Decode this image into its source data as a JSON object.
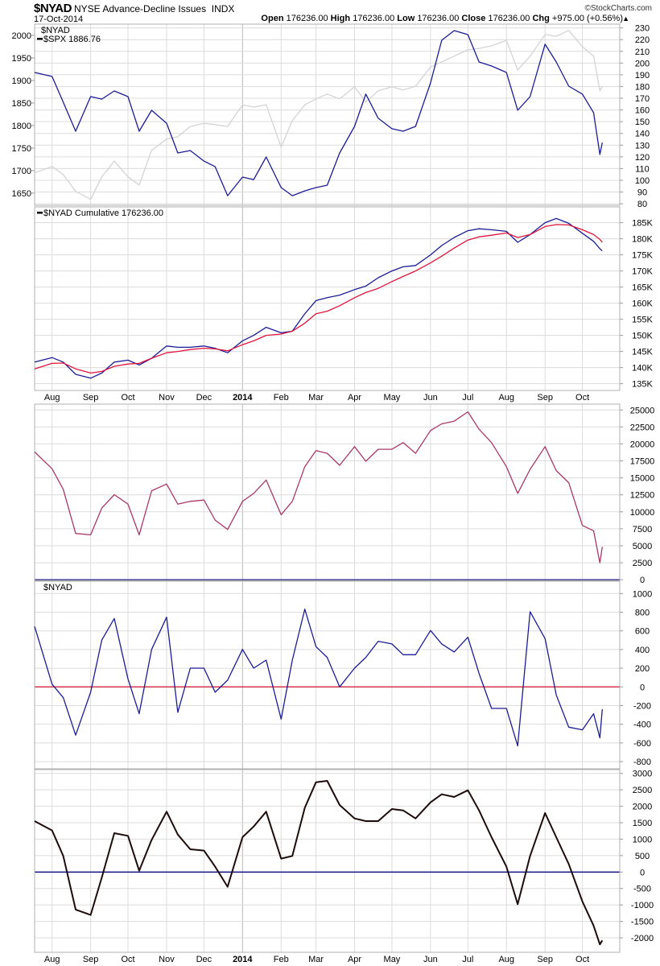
{
  "header": {
    "symbol": "$NYAD",
    "name": "NYSE Advance-Decline Issues",
    "exchange": "INDX",
    "date": "17-Oct-2014",
    "copyright": "©StockCharts.com",
    "open_label": "Open",
    "open": "176236.00",
    "high_label": "High",
    "high": "176236.00",
    "low_label": "Low",
    "low": "176236.00",
    "close_label": "Close",
    "close": "176236.00",
    "chg_label": "Chg",
    "chg": "+975.00 (+0.56%)",
    "chg_arrow": "▲"
  },
  "colors": {
    "nyad": "#1c1c96",
    "spx": "#d4d4d4",
    "ma": "#e0153c",
    "osc3": "#a83868",
    "osc5": "#1e0c0c",
    "zero4": "#d0102c",
    "zero_navy": "#0a0a80",
    "grid": "#dcdcdc"
  },
  "chart_data": {
    "type": "line",
    "x_range": [
      "2013-07-18",
      "2014-10-31"
    ],
    "x_ticks": [
      {
        "date": "2013-08-01",
        "label": "Aug"
      },
      {
        "date": "2013-09-01",
        "label": "Sep"
      },
      {
        "date": "2013-10-01",
        "label": "Oct"
      },
      {
        "date": "2013-11-01",
        "label": "Nov"
      },
      {
        "date": "2013-12-01",
        "label": "Dec"
      },
      {
        "date": "2014-01-01",
        "label": "2014",
        "bold": true
      },
      {
        "date": "2014-02-01",
        "label": "Feb"
      },
      {
        "date": "2014-03-01",
        "label": "Mar"
      },
      {
        "date": "2014-04-01",
        "label": "Apr"
      },
      {
        "date": "2014-05-01",
        "label": "May"
      },
      {
        "date": "2014-06-01",
        "label": "Jun"
      },
      {
        "date": "2014-07-01",
        "label": "Jul"
      },
      {
        "date": "2014-08-01",
        "label": "Aug"
      },
      {
        "date": "2014-09-01",
        "label": "Sep"
      },
      {
        "date": "2014-10-01",
        "label": "Oct"
      }
    ],
    "x": [
      "2013-07-18",
      "2013-08-01",
      "2013-08-10",
      "2013-08-20",
      "2013-09-01",
      "2013-09-10",
      "2013-09-20",
      "2013-10-01",
      "2013-10-10",
      "2013-10-20",
      "2013-11-01",
      "2013-11-10",
      "2013-11-20",
      "2013-12-01",
      "2013-12-10",
      "2013-12-20",
      "2014-01-01",
      "2014-01-10",
      "2014-01-20",
      "2014-02-01",
      "2014-02-10",
      "2014-02-20",
      "2014-03-01",
      "2014-03-10",
      "2014-03-20",
      "2014-04-01",
      "2014-04-10",
      "2014-04-20",
      "2014-05-01",
      "2014-05-10",
      "2014-05-20",
      "2014-06-01",
      "2014-06-10",
      "2014-06-20",
      "2014-07-01",
      "2014-07-10",
      "2014-07-20",
      "2014-08-01",
      "2014-08-10",
      "2014-08-20",
      "2014-09-01",
      "2014-09-10",
      "2014-09-20",
      "2014-10-01",
      "2014-10-10",
      "2014-10-15",
      "2014-10-17"
    ],
    "panels": [
      {
        "legend": [
          "$NYAD",
          "$SPX 1886.76"
        ],
        "left_ylim": [
          1623,
          2025
        ],
        "left_ticks": [
          1650,
          1700,
          1750,
          1800,
          1850,
          1900,
          1950,
          2000
        ],
        "right_ylim": [
          78.7,
          233.2
        ],
        "right_ticks": [
          80,
          90,
          100,
          110,
          120,
          130,
          140,
          150,
          160,
          170,
          180,
          190,
          200,
          210,
          220,
          230
        ],
        "series": [
          {
            "name": "$SPX",
            "axis": "left",
            "color_key": "spx",
            "values": [
              1695,
              1709,
              1691,
              1654,
              1636,
              1686,
              1721,
              1686,
              1668,
              1745,
              1770,
              1775,
              1798,
              1805,
              1802,
              1798,
              1846,
              1841,
              1846,
              1752,
              1811,
              1846,
              1859,
              1870,
              1859,
              1886,
              1852,
              1877,
              1886,
              1879,
              1887,
              1930,
              1941,
              1954,
              1968,
              1971,
              1977,
              1989,
              1923,
              1954,
              2002,
              1998,
              2011,
              1975,
              1954,
              1877,
              1886.76
            ]
          },
          {
            "name": "$NYAD",
            "axis": "right",
            "color_key": "nyad",
            "values": [
              192.0,
              188.6,
              166.6,
              141.9,
              171.4,
              169.3,
              176.2,
              171.4,
              141.9,
              159.7,
              148.7,
              123.3,
              125.4,
              116.4,
              111.6,
              86.9,
              102.7,
              100.6,
              119.9,
              93.8,
              86.9,
              91.0,
              93.8,
              95.8,
              123.3,
              146.0,
              173.5,
              152.9,
              144.0,
              141.9,
              146.0,
              183.1,
              219.5,
              227.7,
              224.3,
              200.9,
              197.5,
              192.0,
              159.7,
              171.4,
              216.1,
              200.9,
              180.3,
              173.5,
              157.7,
              122.0,
              132.2
            ]
          }
        ]
      },
      {
        "legend": [
          "$NYAD Cumulative 176236.00"
        ],
        "right_ylim": [
          132900,
          189900
        ],
        "right_ticks": [
          135000,
          140000,
          145000,
          150000,
          155000,
          160000,
          165000,
          170000,
          175000,
          180000,
          185000
        ],
        "right_tick_labels": [
          "135K",
          "140K",
          "145K",
          "150K",
          "155K",
          "160K",
          "165K",
          "170K",
          "175K",
          "180K",
          "185K"
        ],
        "series": [
          {
            "name": "$NYAD Cumulative",
            "axis": "right",
            "color_key": "nyad",
            "values": [
              141700,
              143100,
              141700,
              137900,
              136700,
              138300,
              141700,
              142300,
              140800,
              142900,
              146700,
              146300,
              146300,
              146700,
              146000,
              144600,
              148300,
              150000,
              152500,
              150800,
              151300,
              156700,
              160800,
              161700,
              162500,
              164200,
              165300,
              167900,
              170000,
              171300,
              171700,
              175000,
              177900,
              180400,
              182500,
              183100,
              182800,
              182300,
              178900,
              181300,
              185000,
              186300,
              184800,
              181700,
              179200,
              176900,
              176236
            ]
          },
          {
            "axis": "right",
            "color_key": "ma",
            "values": [
              139600,
              141300,
              141400,
              139600,
              138300,
              138800,
              140400,
              141100,
              141300,
              142900,
              144600,
              145000,
              145600,
              146000,
              145800,
              145200,
              147100,
              148300,
              150000,
              150400,
              151300,
              153800,
              156700,
              157500,
              159200,
              161700,
              163300,
              164600,
              166700,
              168300,
              170000,
              172500,
              174600,
              177100,
              179600,
              180600,
              181100,
              181800,
              180400,
              181300,
              183800,
              184400,
              184300,
              182800,
              181300,
              179800,
              178900
            ]
          }
        ]
      },
      {
        "legend": [],
        "right_ylim": [
          -100,
          25860
        ],
        "right_ticks": [
          0,
          2500,
          5000,
          7500,
          10000,
          12500,
          15000,
          17500,
          20000,
          22500,
          25000
        ],
        "zero_line": "zero_navy",
        "series": [
          {
            "axis": "right",
            "color_key": "osc3",
            "values": [
              18819,
              16339,
              13307,
              6811,
              6614,
              10551,
              12520,
              11142,
              6614,
              13110,
              14094,
              11142,
              11535,
              11732,
              8780,
              7401,
              11535,
              12716,
              14685,
              9567,
              11535,
              16654,
              19016,
              18622,
              16850,
              19606,
              17441,
              19213,
              19213,
              20197,
              18622,
              21969,
              22953,
              23346,
              24724,
              22165,
              20197,
              16654,
              12717,
              16260,
              19606,
              16063,
              14291,
              7992,
              7205,
              2480,
              4843
            ]
          }
        ]
      },
      {
        "legend": [
          "$NYAD"
        ],
        "right_ylim": [
          -877,
          1132
        ],
        "right_ticks": [
          -800,
          -600,
          -400,
          -200,
          0,
          200,
          400,
          600,
          800,
          1000
        ],
        "zero_line": "zero4",
        "series": [
          {
            "name": "$NYAD",
            "axis": "right",
            "color_key": "nyad",
            "values": [
              647,
              29,
              -115,
              -517,
              -57,
              503,
              733,
              86,
              -287,
              402,
              747,
              -273,
              201,
              201,
              -57,
              72,
              402,
              201,
              287,
              -345,
              287,
              833,
              431,
              316,
              0,
              201,
              316,
              489,
              460,
              345,
              345,
              604,
              460,
              374,
              532,
              144,
              -230,
              -230,
              -632,
              805,
              517,
              -86,
              -431,
              -460,
              -287,
              -546,
              -239
            ]
          }
        ]
      },
      {
        "legend": [],
        "right_ylim": [
          -2440,
          3115
        ],
        "right_ticks": [
          -2000,
          -1500,
          -1000,
          -500,
          0,
          500,
          1000,
          1500,
          2000,
          2500,
          3000
        ],
        "zero_line": "zero_navy",
        "series": [
          {
            "axis": "right",
            "color_key": "osc5",
            "values": [
              1549,
              1264,
              489,
              -1141,
              -1304,
              -163,
              1182,
              1100,
              41,
              978,
              1834,
              1141,
              693,
              652,
              163,
              -448,
              1060,
              1386,
              1834,
              408,
              489,
              1956,
              2731,
              2772,
              2038,
              1630,
              1549,
              1549,
              1916,
              1875,
              1630,
              2120,
              2364,
              2283,
              2486,
              1875,
              1060,
              163,
              -978,
              489,
              1793,
              1060,
              245,
              -897,
              -1630,
              -2201,
              -2079
            ]
          }
        ]
      }
    ]
  }
}
